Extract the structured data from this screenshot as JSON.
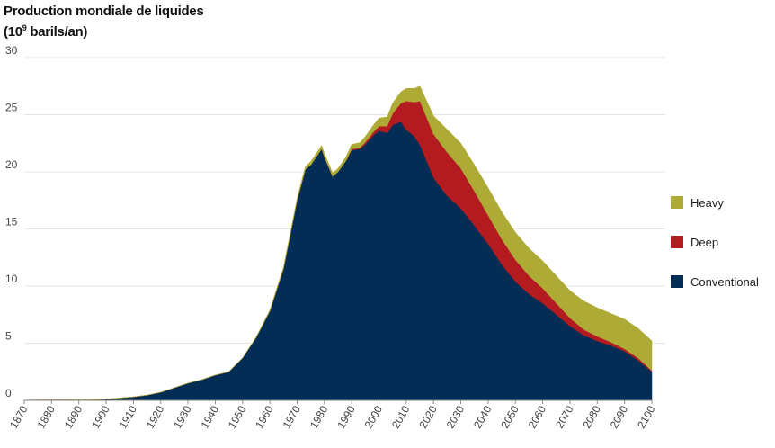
{
  "title_line1": "Production mondiale de liquides",
  "title_line2_base": "(10",
  "title_line2_exp": "9",
  "title_line2_rest": " barils/an)",
  "colors": {
    "conventional": "#032d55",
    "deep": "#b31b21",
    "heavy": "#adaa35",
    "grid": "#e4e4e4",
    "axis": "#888888"
  },
  "legend": [
    {
      "label": "Heavy",
      "color": "#adaa35"
    },
    {
      "label": "Deep",
      "color": "#b31b21"
    },
    {
      "label": "Conventional",
      "color": "#032d55"
    }
  ],
  "chart_data": {
    "type": "area",
    "stacked": true,
    "x": [
      1870,
      1880,
      1890,
      1900,
      1905,
      1910,
      1915,
      1920,
      1925,
      1930,
      1935,
      1940,
      1945,
      1950,
      1955,
      1960,
      1965,
      1970,
      1973,
      1975,
      1977,
      1979,
      1980,
      1983,
      1985,
      1988,
      1990,
      1993,
      1995,
      1998,
      2000,
      2003,
      2005,
      2008,
      2010,
      2013,
      2015,
      2020,
      2025,
      2030,
      2035,
      2040,
      2045,
      2050,
      2055,
      2060,
      2065,
      2070,
      2075,
      2080,
      2085,
      2090,
      2095,
      2100
    ],
    "series": [
      {
        "name": "Conventional",
        "values": [
          0.02,
          0.03,
          0.05,
          0.1,
          0.2,
          0.3,
          0.45,
          0.7,
          1.1,
          1.5,
          1.8,
          2.2,
          2.5,
          3.7,
          5.5,
          7.8,
          11.5,
          17.5,
          20.2,
          20.6,
          21.3,
          22.0,
          21.3,
          19.6,
          20.0,
          21.0,
          21.9,
          22.0,
          22.4,
          23.2,
          23.6,
          23.4,
          24.1,
          24.4,
          23.7,
          23.1,
          22.4,
          19.5,
          17.9,
          16.8,
          15.3,
          13.7,
          11.9,
          10.4,
          9.3,
          8.5,
          7.5,
          6.5,
          5.7,
          5.2,
          4.8,
          4.3,
          3.5,
          2.5
        ]
      },
      {
        "name": "Deep",
        "values": [
          0,
          0,
          0,
          0,
          0,
          0,
          0,
          0,
          0,
          0,
          0,
          0,
          0,
          0,
          0,
          0,
          0,
          0,
          0,
          0,
          0,
          0,
          0,
          0,
          0,
          0,
          0.1,
          0.1,
          0.2,
          0.3,
          0.4,
          0.6,
          1.0,
          1.6,
          2.5,
          3.0,
          3.8,
          3.8,
          3.8,
          3.5,
          3.0,
          2.5,
          2.2,
          1.9,
          1.6,
          1.3,
          1.0,
          0.7,
          0.5,
          0.4,
          0.3,
          0.2,
          0.2,
          0.1
        ]
      },
      {
        "name": "Heavy",
        "values": [
          0,
          0,
          0,
          0,
          0,
          0,
          0,
          0,
          0,
          0,
          0,
          0,
          0,
          0,
          0.05,
          0.1,
          0.15,
          0.2,
          0.25,
          0.3,
          0.3,
          0.3,
          0.3,
          0.3,
          0.3,
          0.35,
          0.4,
          0.45,
          0.5,
          0.6,
          0.7,
          0.8,
          0.9,
          1.0,
          1.1,
          1.2,
          1.3,
          1.6,
          2.0,
          2.2,
          2.3,
          2.4,
          2.4,
          2.4,
          2.4,
          2.4,
          2.4,
          2.4,
          2.5,
          2.5,
          2.5,
          2.6,
          2.6,
          2.6
        ]
      }
    ],
    "xlim": [
      1870,
      2100
    ],
    "ylim": [
      0,
      30
    ],
    "xticks": [
      1870,
      1880,
      1890,
      1900,
      1910,
      1920,
      1930,
      1940,
      1950,
      1960,
      1970,
      1980,
      1990,
      2000,
      2010,
      2020,
      2030,
      2040,
      2050,
      2060,
      2070,
      2080,
      2090,
      2100
    ],
    "yticks": [
      0,
      5,
      10,
      15,
      20,
      25,
      30
    ],
    "grid": true,
    "legend_position": "right"
  }
}
